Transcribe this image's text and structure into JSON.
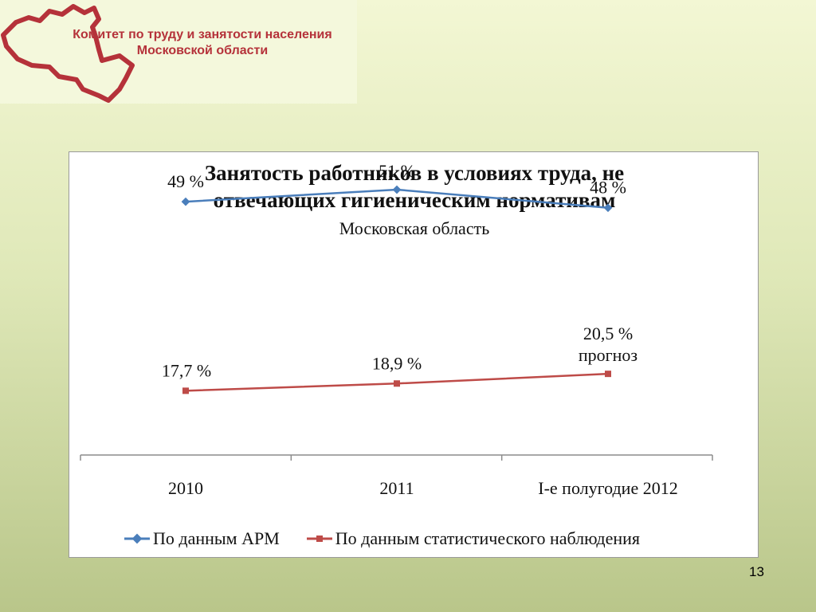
{
  "header": {
    "org_line1": "Комитет по труду и занятости населения",
    "org_line2": "Московской области",
    "logo_icon": "moscow-region-outline-icon",
    "brand_color": "#b5323a"
  },
  "page_number": "13",
  "chart_data": {
    "type": "line",
    "title_line1": "Занятость работников в условиях труда, не",
    "title_line2": "отвечающих гигиеническим нормативам",
    "subtitle": "Московская область",
    "categories": [
      "2010",
      "2011",
      "I-е полугодие 2012"
    ],
    "ylim": [
      0,
      60
    ],
    "grid": false,
    "legend_position": "bottom",
    "series": [
      {
        "name": "По данным АРМ",
        "values": [
          49,
          51,
          48
        ],
        "labels": [
          "49 %",
          "51 %",
          "48 %"
        ],
        "color": "#4a7ebb",
        "marker": "diamond"
      },
      {
        "name": "По данным статистического наблюдения",
        "values": [
          17.7,
          18.9,
          20.5
        ],
        "labels": [
          "17,7 %",
          "18,9 %",
          "20,5 %"
        ],
        "color": "#be4b48",
        "marker": "square"
      }
    ],
    "annotations": [
      {
        "series": 1,
        "point": 2,
        "text": "прогноз"
      }
    ]
  }
}
